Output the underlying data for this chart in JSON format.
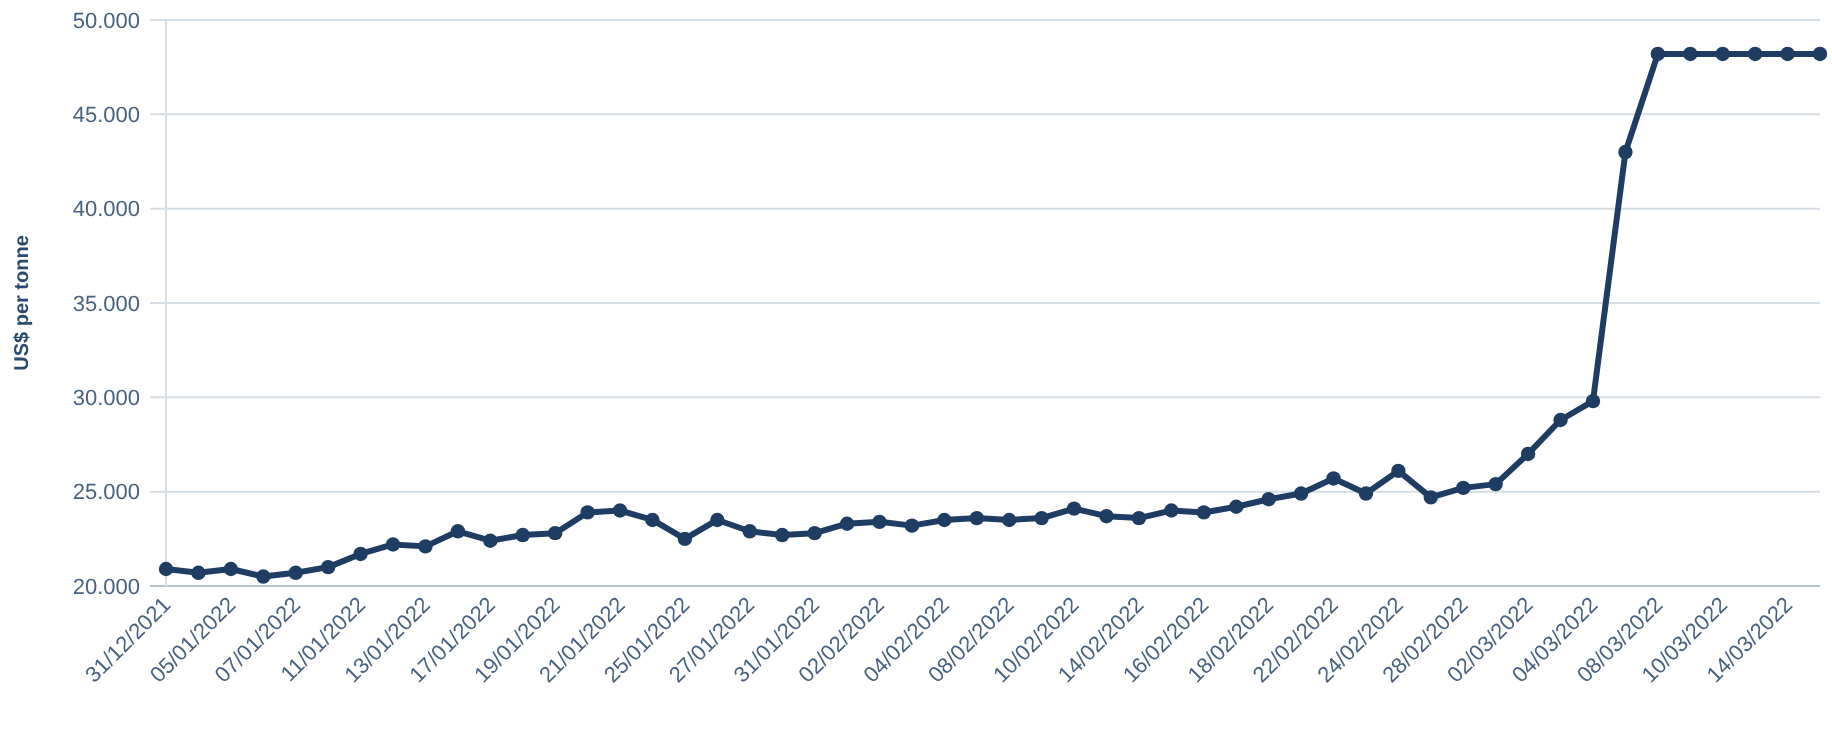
{
  "chart_data": {
    "type": "line",
    "ylabel": "US$ per tonne",
    "categories": [
      "31/12/2021",
      null,
      "05/01/2022",
      null,
      "07/01/2022",
      null,
      "11/01/2022",
      null,
      "13/01/2022",
      null,
      "17/01/2022",
      null,
      "19/01/2022",
      null,
      "21/01/2022",
      null,
      "25/01/2022",
      null,
      "27/01/2022",
      null,
      "31/01/2022",
      null,
      "02/02/2022",
      null,
      "04/02/2022",
      null,
      "08/02/2022",
      null,
      "10/02/2022",
      null,
      "14/02/2022",
      null,
      "16/02/2022",
      null,
      "18/02/2022",
      null,
      "22/02/2022",
      null,
      "24/02/2022",
      null,
      "28/02/2022",
      null,
      "02/03/2022",
      null,
      "04/03/2022",
      null,
      "08/03/2022",
      null,
      "10/03/2022",
      null,
      "14/03/2022",
      null
    ],
    "series": [
      {
        "color": "#1f3d63",
        "values": [
          20900,
          20700,
          20900,
          20500,
          20700,
          21000,
          21700,
          22200,
          22100,
          22900,
          22400,
          22700,
          22800,
          23900,
          24000,
          23500,
          22500,
          23500,
          22900,
          22700,
          22800,
          23300,
          23400,
          23200,
          23500,
          23600,
          23500,
          23600,
          24100,
          23700,
          23600,
          24000,
          23900,
          24200,
          24600,
          24900,
          25700,
          24900,
          26100,
          24700,
          25200,
          25400,
          27000,
          28800,
          29800,
          43000,
          48200,
          48200,
          48200,
          48200,
          48200,
          48200
        ]
      }
    ],
    "ylim": [
      20000,
      50000
    ],
    "yticks": [
      {
        "value": 20000,
        "label": "20.000"
      },
      {
        "value": 25000,
        "label": "25.000"
      },
      {
        "value": 30000,
        "label": "30.000"
      },
      {
        "value": 35000,
        "label": "35.000"
      },
      {
        "value": 40000,
        "label": "40.000"
      },
      {
        "value": 45000,
        "label": "45.000"
      },
      {
        "value": 50000,
        "label": "50.000"
      }
    ],
    "grid": "y",
    "marker": "circle",
    "line_style": "solid"
  }
}
